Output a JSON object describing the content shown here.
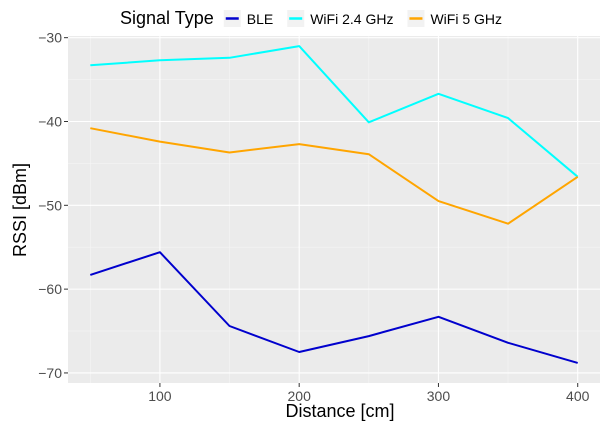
{
  "chart_data": {
    "type": "line",
    "xlabel": "Distance [cm]",
    "ylabel": "RSSI [dBm]",
    "xlim": [
      34,
      416
    ],
    "ylim": [
      -71.2,
      -29.8
    ],
    "x_ticks": [
      100,
      200,
      300,
      400
    ],
    "y_ticks": [
      -70,
      -60,
      -50,
      -40,
      -30
    ],
    "y_tick_labels": [
      "−70",
      "−60",
      "−50",
      "−40",
      "−30"
    ],
    "legend": {
      "title": "Signal Type",
      "position": "top"
    },
    "grid": true,
    "x": [
      50,
      100,
      150,
      200,
      250,
      300,
      350,
      400
    ],
    "series": [
      {
        "name": "BLE",
        "color": "#0000CD",
        "values": [
          -58.3,
          -55.6,
          -64.4,
          -67.5,
          -65.6,
          -63.3,
          -66.4,
          -68.8
        ]
      },
      {
        "name": "WiFi 2.4 GHz",
        "color": "#00FFFF",
        "values": [
          -33.3,
          -32.7,
          -32.4,
          -31.0,
          -40.1,
          -36.7,
          -39.6,
          -46.6
        ]
      },
      {
        "name": "WiFi 5 GHz",
        "color": "#FFA500",
        "values": [
          -40.8,
          -42.4,
          -43.7,
          -42.7,
          -43.9,
          -49.5,
          -52.2,
          -46.6
        ]
      }
    ]
  }
}
